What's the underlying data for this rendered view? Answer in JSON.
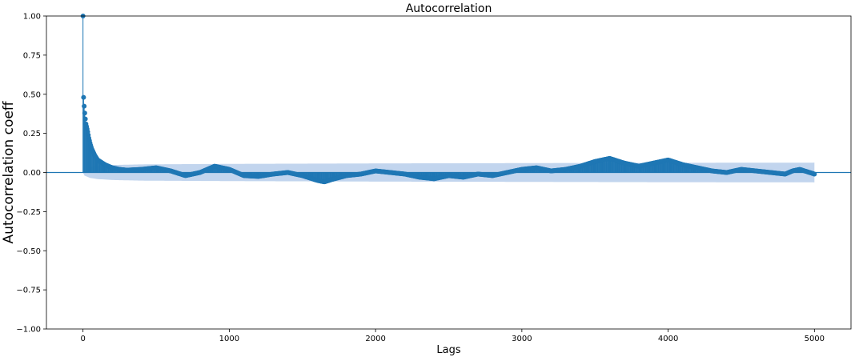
{
  "chart_data": {
    "type": "line",
    "title": "Autocorrelation",
    "xlabel": "Lags",
    "ylabel": "Autocorrelation coeff",
    "xlim": [
      -250,
      5250
    ],
    "ylim": [
      -1.0,
      1.0
    ],
    "x_ticks": [
      0,
      1000,
      2000,
      3000,
      4000,
      5000
    ],
    "y_ticks": [
      -1.0,
      -0.75,
      -0.5,
      -0.25,
      0.0,
      0.25,
      0.5,
      0.75,
      1.0
    ],
    "x_tick_labels": [
      "0",
      "1000",
      "2000",
      "3000",
      "4000",
      "5000"
    ],
    "y_tick_labels": [
      "−1.00",
      "−0.75",
      "−0.50",
      "−0.25",
      "0.00",
      "0.25",
      "0.50",
      "0.75",
      "1.00"
    ],
    "grid": false,
    "max_lag": 5000,
    "colors": {
      "stem": "#1f77b4",
      "confidence_band": "#aec7e8",
      "zero_line": "#1f77b4"
    },
    "confidence_band": {
      "lags": [
        0,
        10,
        50,
        100,
        200,
        400,
        1000,
        2000,
        3000,
        4000,
        5000
      ],
      "upper": [
        0.0,
        0.02,
        0.035,
        0.042,
        0.048,
        0.052,
        0.055,
        0.058,
        0.06,
        0.062,
        0.063
      ],
      "lower": [
        0.0,
        -0.02,
        -0.035,
        -0.042,
        -0.048,
        -0.052,
        -0.055,
        -0.058,
        -0.06,
        -0.062,
        -0.063
      ]
    },
    "series": [
      {
        "lags": [
          0,
          1,
          2,
          3,
          5,
          10,
          15,
          20,
          30,
          40,
          50,
          60,
          80,
          100,
          150,
          200,
          250,
          300,
          400,
          500,
          600,
          700,
          800,
          900,
          1000,
          1100,
          1200,
          1300,
          1400,
          1500,
          1600,
          1650,
          1700,
          1800,
          1900,
          2000,
          2100,
          2200,
          2300,
          2400,
          2500,
          2600,
          2700,
          2800,
          2900,
          3000,
          3100,
          3200,
          3300,
          3400,
          3500,
          3600,
          3700,
          3800,
          3900,
          4000,
          4100,
          4200,
          4300,
          4400,
          4500,
          4600,
          4700,
          4800,
          4850,
          4900,
          5000
        ],
        "values": [
          1.0,
          0.57,
          0.53,
          0.5,
          0.46,
          0.4,
          0.35,
          0.31,
          0.27,
          0.22,
          0.18,
          0.15,
          0.11,
          0.08,
          0.05,
          0.03,
          0.02,
          0.015,
          0.02,
          0.03,
          0.01,
          -0.02,
          0.0,
          0.04,
          0.02,
          -0.02,
          -0.025,
          -0.01,
          0.0,
          -0.02,
          -0.05,
          -0.06,
          -0.045,
          -0.02,
          -0.01,
          0.01,
          0.0,
          -0.01,
          -0.03,
          -0.04,
          -0.02,
          -0.03,
          -0.01,
          -0.02,
          0.0,
          0.02,
          0.03,
          0.01,
          0.02,
          0.04,
          0.07,
          0.09,
          0.06,
          0.04,
          0.06,
          0.08,
          0.05,
          0.03,
          0.01,
          0.0,
          0.02,
          0.01,
          0.0,
          -0.01,
          0.01,
          0.02,
          -0.01
        ]
      }
    ]
  }
}
